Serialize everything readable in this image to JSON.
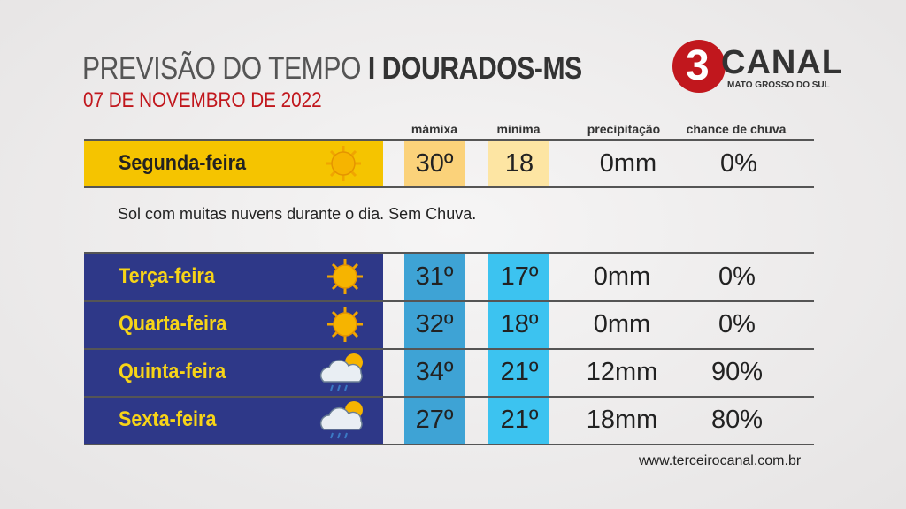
{
  "header": {
    "title_light": "PREVISÃO DO TEMPO",
    "title_bold": "I DOURADOS-MS",
    "date": "07 DE NOVEMBRO DE 2022"
  },
  "logo": {
    "number": "3",
    "name": "CANAL",
    "region": "MATO GROSSO DO SUL"
  },
  "columns": [
    "mámixa",
    "minima",
    "precipitação",
    "chance de chuva"
  ],
  "today": {
    "day": "Segunda-feira",
    "max": "30º",
    "min": "18",
    "precipitation": "0mm",
    "chance": "0%",
    "summary": "Sol com muitas nuvens durante o dia. Sem Chuva."
  },
  "forecast": [
    {
      "day": "Terça-feira",
      "max": "31º",
      "min": "17º",
      "precipitation": "0mm",
      "chance": "0%"
    },
    {
      "day": "Quarta-feira",
      "max": "32º",
      "min": "18º",
      "precipitation": "0mm",
      "chance": "0%"
    },
    {
      "day": "Quinta-feira",
      "max": "34º",
      "min": "21º",
      "precipitation": "12mm",
      "chance": "90%"
    },
    {
      "day": "Sexta-feira",
      "max": "27º",
      "min": "21º",
      "precipitation": "18mm",
      "chance": "80%"
    }
  ],
  "footer": "www.terceirocanal.com.br"
}
